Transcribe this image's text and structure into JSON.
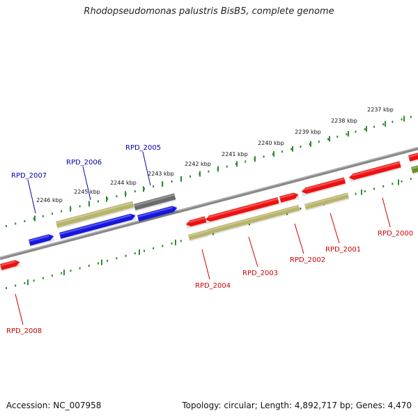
{
  "title": "Rhodopseudomonas palustris BisB5, complete genome",
  "footer": {
    "accession": "Accession: NC_007958",
    "summary": "Topology: circular; Length: 4,892,717 bp; Genes: 4,470"
  },
  "colors": {
    "backbone": "#888888",
    "ruler": "#2e8b2e",
    "gene_red": "#ee1111",
    "gene_blue": "#1616e0",
    "gene_tan": "#b8b46a",
    "gene_gray": "#6a6a6a",
    "gene_olive": "#6b8e23",
    "label_red": "#cc0000",
    "label_blue": "#0000aa"
  },
  "ruler_upper": [
    "2237 kbp",
    "2238 kbp",
    "2239 kbp",
    "2240 kbp",
    "2241 kbp",
    "2242 kbp",
    "2243 kbp",
    "2244 kbp",
    "2245 kbp",
    "2246 kbp"
  ],
  "gene_labels_upper": [
    "RPD_2005",
    "RPD_2006",
    "RPD_2007"
  ],
  "gene_labels_lower": [
    "RPD_2000",
    "RPD_2001",
    "RPD_2002",
    "RPD_2003",
    "RPD_2004",
    "RPD_2008"
  ]
}
